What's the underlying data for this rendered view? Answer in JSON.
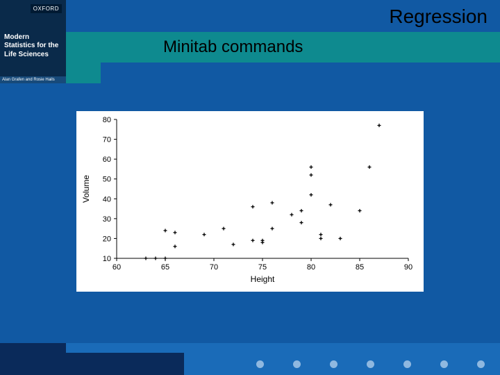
{
  "book": {
    "publisher": "OXFORD",
    "title_l1": "Modern",
    "title_l2": "Statistics for the",
    "title_l3": "Life Sciences",
    "authors": "Alan Grafen and Rosie Hails"
  },
  "slide": {
    "title": "Regression",
    "subtitle": "Minitab commands"
  },
  "chart": {
    "type": "scatter",
    "xlabel": "Height",
    "ylabel": "Volume",
    "xlim": [
      60,
      90
    ],
    "ylim": [
      10,
      80
    ],
    "xticks": [
      60,
      65,
      70,
      75,
      80,
      85,
      90
    ],
    "yticks": [
      10,
      20,
      30,
      40,
      50,
      60,
      70,
      80
    ],
    "background_color": "#ffffff",
    "axis_color": "#000000",
    "marker_color": "#000000",
    "marker": "plus",
    "marker_size": 5,
    "tick_fontsize": 11,
    "label_fontsize": 12,
    "points": [
      [
        63,
        10
      ],
      [
        64,
        10
      ],
      [
        65,
        10
      ],
      [
        66,
        16
      ],
      [
        65,
        24
      ],
      [
        66,
        23
      ],
      [
        69,
        22
      ],
      [
        71,
        25
      ],
      [
        72,
        17
      ],
      [
        74,
        36
      ],
      [
        74,
        19
      ],
      [
        75,
        18
      ],
      [
        75,
        19
      ],
      [
        76,
        38
      ],
      [
        76,
        25
      ],
      [
        78,
        32
      ],
      [
        79,
        28
      ],
      [
        79,
        34
      ],
      [
        80,
        52
      ],
      [
        80,
        56
      ],
      [
        80,
        42
      ],
      [
        81,
        22
      ],
      [
        81,
        20
      ],
      [
        82,
        37
      ],
      [
        83,
        20
      ],
      [
        85,
        34
      ],
      [
        86,
        56
      ],
      [
        87,
        77
      ]
    ]
  },
  "slide_colors": {
    "background": "#1159a3",
    "band": "#0e8a8f",
    "footer_dark": "#0a2a5a",
    "footer_light": "#1a6bb8",
    "dot": "#8fb8e0"
  }
}
